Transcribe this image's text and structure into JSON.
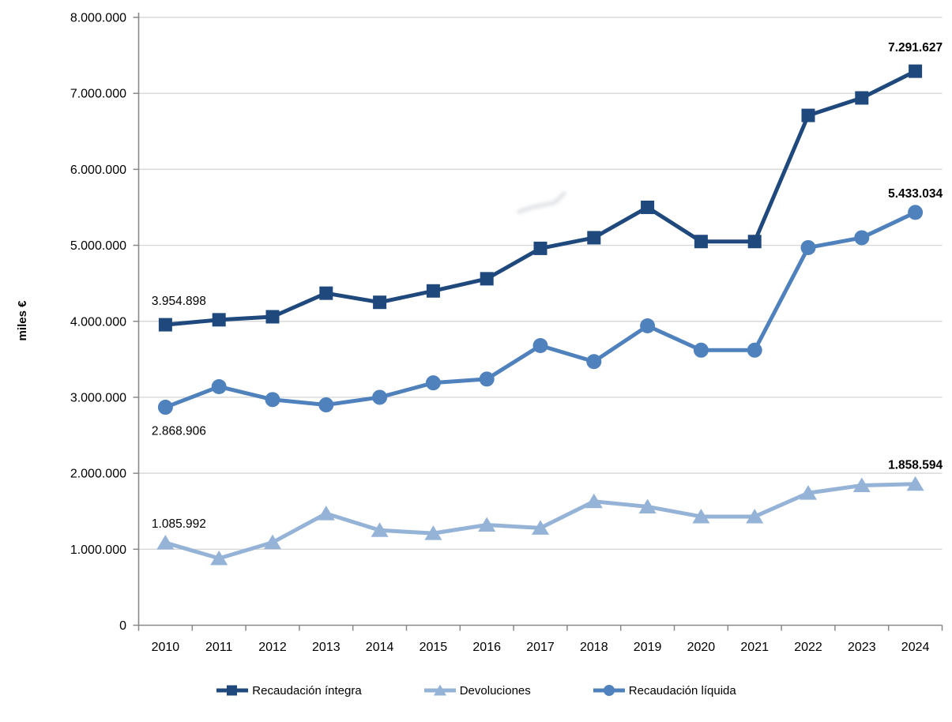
{
  "chart_data": {
    "type": "line",
    "x": [
      "2010",
      "2011",
      "2012",
      "2013",
      "2014",
      "2015",
      "2016",
      "2017",
      "2018",
      "2019",
      "2020",
      "2021",
      "2022",
      "2023",
      "2024"
    ],
    "title": "",
    "xlabel": "",
    "ylabel": "miles €",
    "ylim": [
      0,
      8000000
    ],
    "ytick_step": 1000000,
    "ytick_labels": [
      "0",
      "1.000.000",
      "2.000.000",
      "3.000.000",
      "4.000.000",
      "5.000.000",
      "6.000.000",
      "7.000.000",
      "8.000.000"
    ],
    "grid": true,
    "legend_position": "bottom",
    "series": [
      {
        "name": "Recaudación íntegra",
        "marker": "square",
        "color": "#1F497D",
        "values": [
          3954898,
          4020000,
          4060000,
          4370000,
          4250000,
          4400000,
          4560000,
          4960000,
          5100000,
          5500000,
          5050000,
          5050000,
          6710000,
          6940000,
          7291627
        ]
      },
      {
        "name": "Devoluciones",
        "marker": "triangle",
        "color": "#95B3D7",
        "values": [
          1085992,
          880000,
          1090000,
          1470000,
          1250000,
          1210000,
          1320000,
          1280000,
          1630000,
          1560000,
          1430000,
          1430000,
          1740000,
          1840000,
          1858594
        ]
      },
      {
        "name": "Recaudación líquida",
        "marker": "circle",
        "color": "#4F81BD",
        "values": [
          2868906,
          3140000,
          2970000,
          2900000,
          3000000,
          3190000,
          3240000,
          3680000,
          3470000,
          3940000,
          3620000,
          3620000,
          4970000,
          5100000,
          5433034
        ]
      }
    ],
    "annotations": [
      {
        "text": "3.954.898",
        "series": 0,
        "index": 0,
        "position": "above",
        "bold": false
      },
      {
        "text": "7.291.627",
        "series": 0,
        "index": 14,
        "position": "above",
        "bold": true
      },
      {
        "text": "1.085.992",
        "series": 1,
        "index": 0,
        "position": "above",
        "bold": false
      },
      {
        "text": "1.858.594",
        "series": 1,
        "index": 14,
        "position": "above",
        "bold": true
      },
      {
        "text": "2.868.906",
        "series": 2,
        "index": 0,
        "position": "below",
        "bold": false
      },
      {
        "text": "5.433.034",
        "series": 2,
        "index": 14,
        "position": "above",
        "bold": true
      }
    ]
  },
  "colors": {
    "background": "#FFFFFF",
    "gridline": "#D9D9D9",
    "axis": "#898989",
    "text": "#000000",
    "series_dark_blue": "#1F497D",
    "series_light_blue": "#95B3D7",
    "series_medium_blue": "#4F81BD",
    "smudge": "#C4CAD1"
  }
}
